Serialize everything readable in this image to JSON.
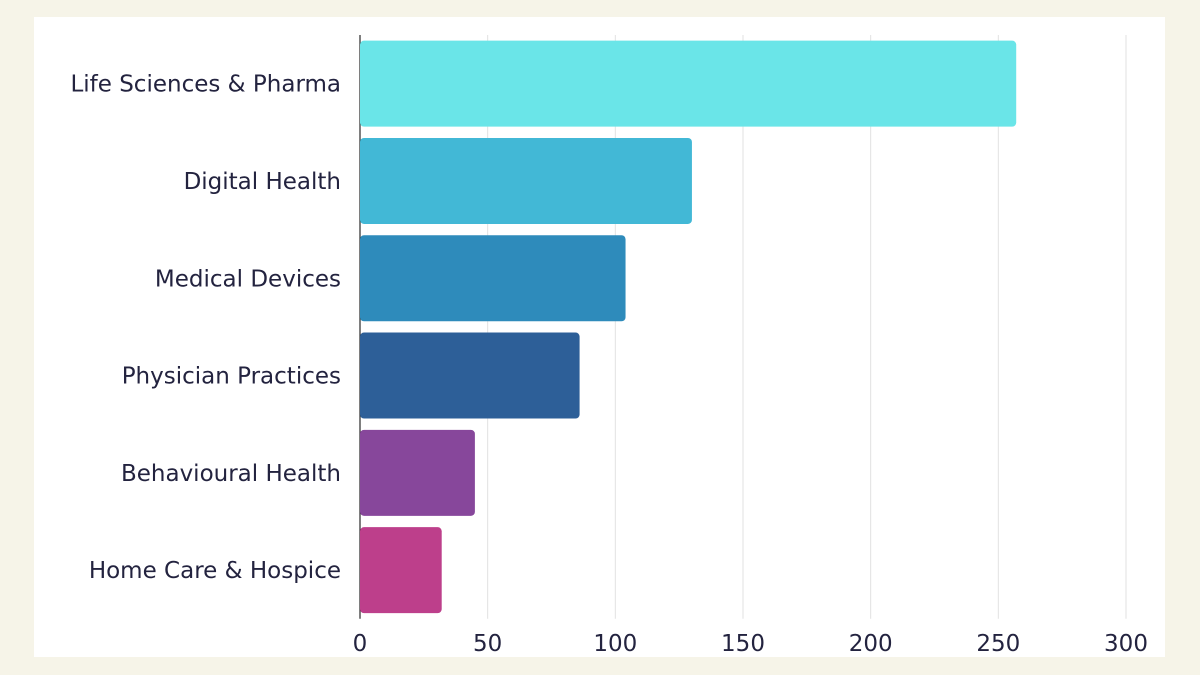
{
  "chart_data": {
    "type": "bar",
    "orientation": "horizontal",
    "categories": [
      "Life Sciences & Pharma",
      "Digital Health",
      "Medical Devices",
      "Physician Practices",
      "Behavioural Health",
      "Home Care & Hospice"
    ],
    "values": [
      257,
      130,
      104,
      86,
      45,
      32
    ],
    "colors": [
      "#6ae5e8",
      "#42b8d6",
      "#2e8bbb",
      "#2d5f98",
      "#87479b",
      "#bd3f8b"
    ],
    "xlim": [
      0,
      300
    ],
    "xticks": [
      "0",
      "50",
      "100",
      "150",
      "200",
      "250",
      "300"
    ],
    "xlabel": "",
    "ylabel": "",
    "title": "",
    "grid": "vertical",
    "legend": "none"
  }
}
